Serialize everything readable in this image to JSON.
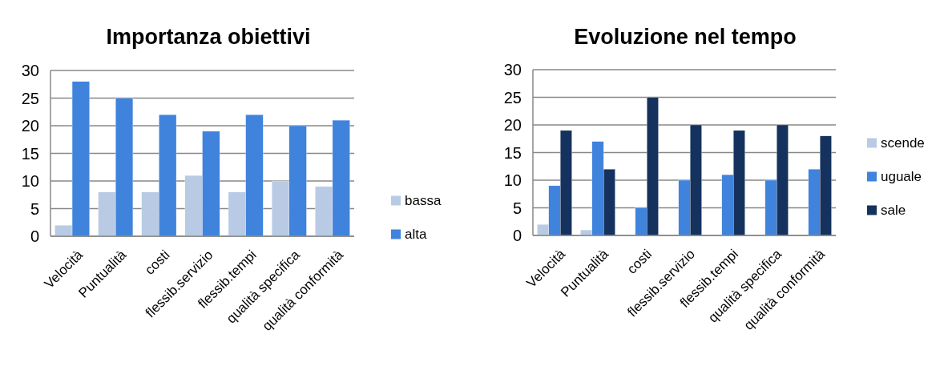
{
  "chart_data": [
    {
      "type": "bar",
      "title": "Importanza obiettivi",
      "categories": [
        "Velocità",
        "Puntualità",
        "costi",
        "flessib.servizio",
        "flessib.tempi",
        "qualità specifica",
        "qualità conformità"
      ],
      "series": [
        {
          "name": "bassa",
          "color": "#b9cbe4",
          "values": [
            2,
            8,
            8,
            11,
            8,
            10,
            9
          ]
        },
        {
          "name": "alta",
          "color": "#3f83dc",
          "values": [
            28,
            25,
            22,
            19,
            22,
            20,
            21
          ]
        }
      ],
      "ylim": [
        0,
        30
      ],
      "yticks": [
        0,
        5,
        10,
        15,
        20,
        25,
        30
      ],
      "grid": "y",
      "legend": "right"
    },
    {
      "type": "bar",
      "title": "Evoluzione nel tempo",
      "categories": [
        "Velocità",
        "Puntualità",
        "costi",
        "flessib.servizio",
        "flessib.tempi",
        "qualità specifica",
        "qualità conformità"
      ],
      "series": [
        {
          "name": "scende",
          "color": "#b9cbe4",
          "values": [
            2,
            1,
            0,
            0,
            0,
            0,
            0
          ]
        },
        {
          "name": "uguale",
          "color": "#3f83dc",
          "values": [
            9,
            17,
            5,
            10,
            11,
            10,
            12
          ]
        },
        {
          "name": "sale",
          "color": "#15325e",
          "values": [
            19,
            12,
            25,
            20,
            19,
            20,
            18
          ]
        }
      ],
      "ylim": [
        0,
        30
      ],
      "yticks": [
        0,
        5,
        10,
        15,
        20,
        25,
        30
      ],
      "grid": "y",
      "legend": "right"
    }
  ]
}
